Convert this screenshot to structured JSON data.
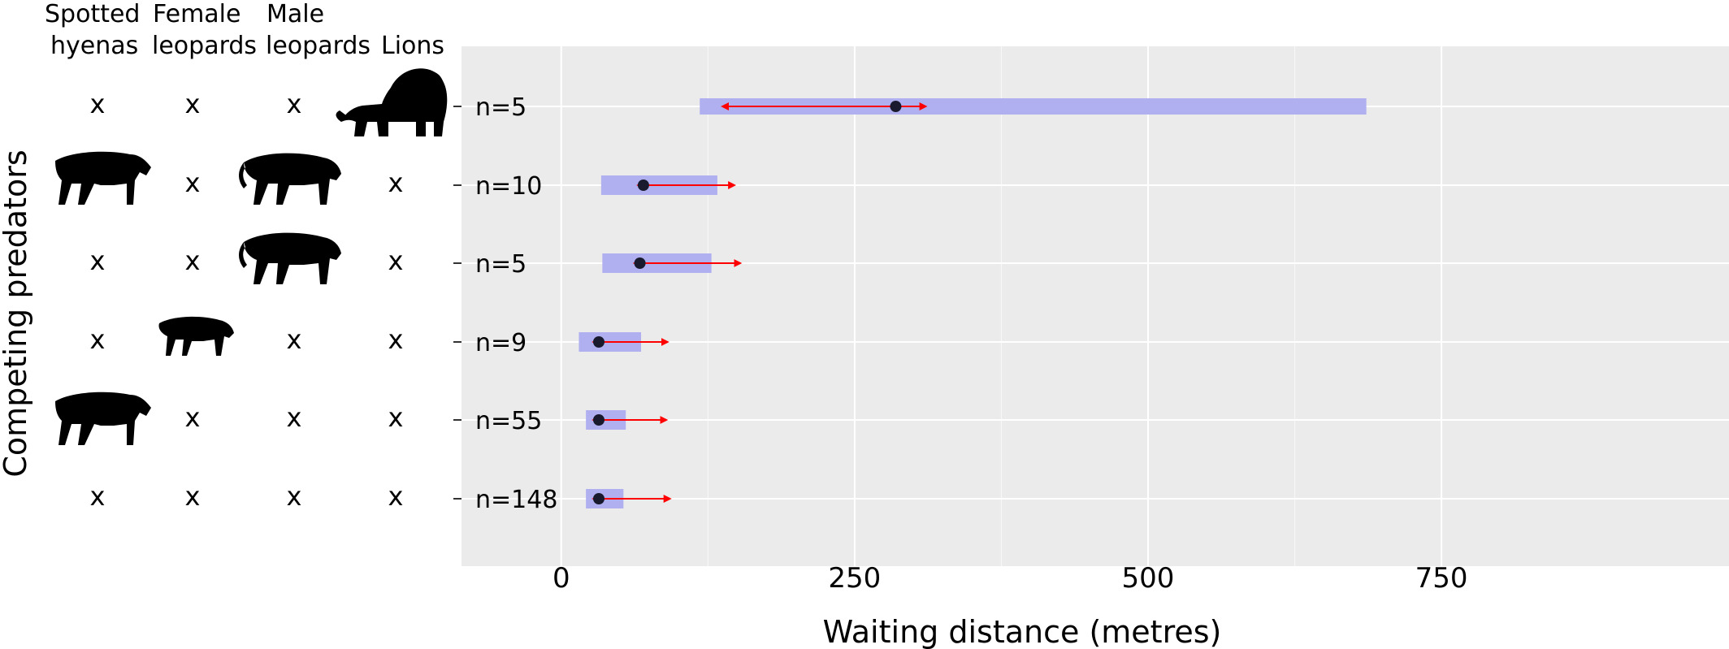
{
  "chart_data": {
    "type": "range-bar",
    "title": "",
    "xlabel": "Waiting distance (metres)",
    "ylabel": "Competing predators",
    "xlim": [
      -85,
      995
    ],
    "xticks": [
      0,
      250,
      500,
      750
    ],
    "grid": true,
    "column_headers": [
      {
        "line1": "Spotted",
        "line2": "hyenas"
      },
      {
        "line1": "Female",
        "line2": "leopards"
      },
      {
        "line1": "Male",
        "line2": "leopards"
      },
      {
        "line1": "",
        "line2": "Lions"
      }
    ],
    "rows": [
      {
        "n_label": "n=5",
        "presence": [
          "x",
          "x",
          "x",
          "lion-icon"
        ],
        "range": [
          118,
          686
        ],
        "point": 285,
        "arrow": [
          138,
          310
        ]
      },
      {
        "n_label": "n=10",
        "presence": [
          "hyena-icon",
          "x",
          "male-leopard-icon",
          "x"
        ],
        "range": [
          34,
          133
        ],
        "point": 70,
        "arrow": [
          66,
          147
        ]
      },
      {
        "n_label": "n=5",
        "presence": [
          "x",
          "x",
          "male-leopard-icon",
          "x"
        ],
        "range": [
          35,
          128
        ],
        "point": 67,
        "arrow": [
          63,
          152
        ]
      },
      {
        "n_label": "n=9",
        "presence": [
          "x",
          "female-leopard-icon",
          "x",
          "x"
        ],
        "range": [
          15,
          68
        ],
        "point": 32,
        "arrow": [
          28,
          90
        ]
      },
      {
        "n_label": "n=55",
        "presence": [
          "hyena-icon",
          "x",
          "x",
          "x"
        ],
        "range": [
          21,
          55
        ],
        "point": 32,
        "arrow": [
          28,
          89
        ]
      },
      {
        "n_label": "n=148",
        "presence": [
          "x",
          "x",
          "x",
          "x"
        ],
        "range": [
          21,
          53
        ],
        "point": 32,
        "arrow": [
          28,
          92
        ]
      }
    ],
    "colors": {
      "panel": "#ebebeb",
      "grid": "#ffffff",
      "range": "#b0b0f0",
      "arrow": "#ff0000",
      "point": "#1a1a2e"
    }
  }
}
